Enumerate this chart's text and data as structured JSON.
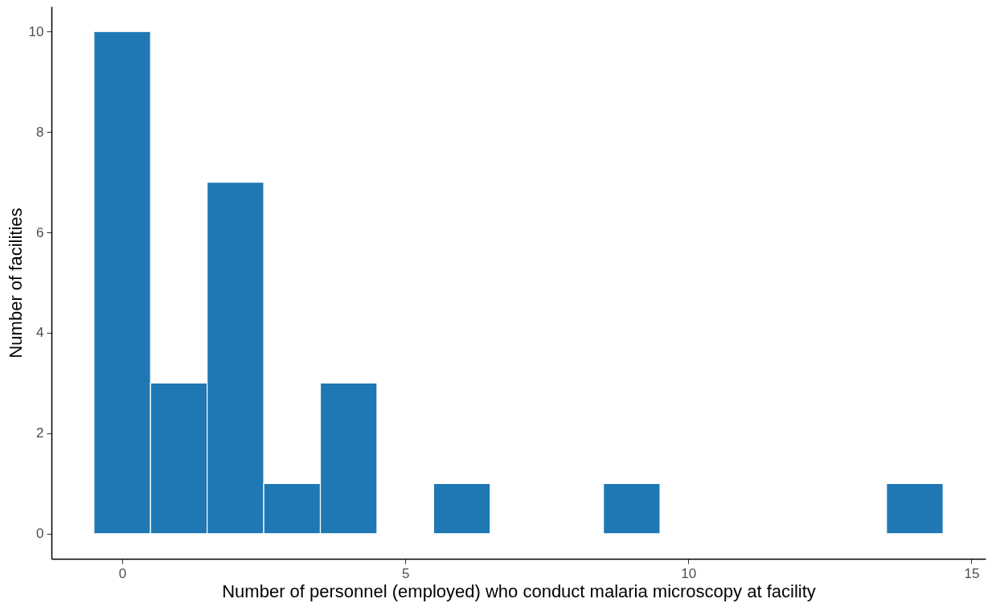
{
  "chart_data": {
    "type": "histogram",
    "xlabel": "Number of personnel (employed) who conduct malaria microscopy at facility",
    "ylabel": "Number of facilities",
    "bins": [
      -0.5,
      0.5,
      1.5,
      2.5,
      3.5,
      4.5,
      5.5,
      6.5,
      7.5,
      8.5,
      9.5,
      10.5,
      11.5,
      12.5,
      13.5,
      14.5
    ],
    "values": [
      10,
      3,
      7,
      1,
      3,
      0,
      1,
      0,
      0,
      1,
      0,
      0,
      0,
      0,
      1
    ],
    "color": "#1f78b4",
    "xlim": [
      -1.25,
      15.25
    ],
    "xticks": [
      0,
      5,
      10,
      15
    ],
    "ylim": [
      -0.5,
      10.5
    ],
    "yticks": [
      0,
      2,
      4,
      6,
      8,
      10
    ],
    "grid": false
  }
}
